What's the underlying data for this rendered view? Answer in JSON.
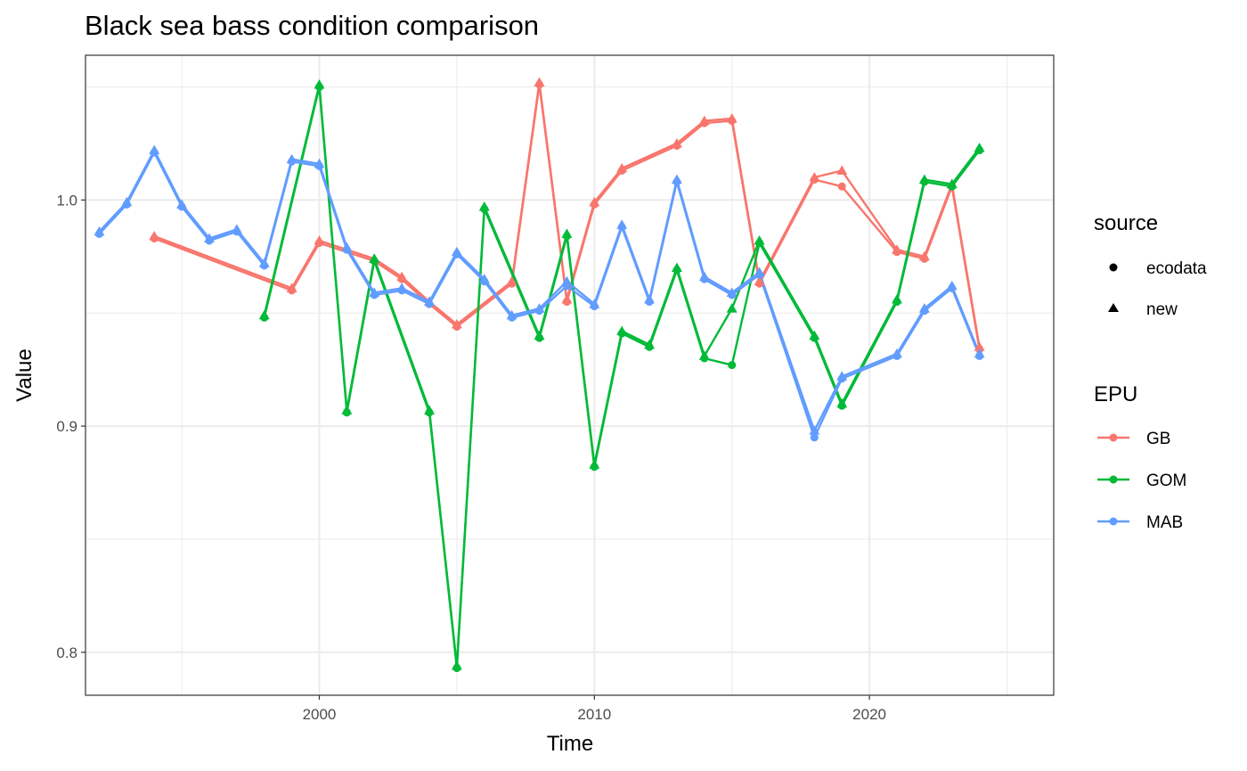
{
  "chart_data": {
    "type": "line",
    "title": "Black sea bass condition comparison",
    "xlabel": "Time",
    "ylabel": "Value",
    "xlim": [
      1991.5,
      2026.7
    ],
    "ylim": [
      0.781,
      1.064
    ],
    "x_ticks": [
      2000,
      2010,
      2020
    ],
    "x_tick_labels": [
      "2000",
      "2010",
      "2020"
    ],
    "y_ticks": [
      0.8,
      0.9,
      1.0
    ],
    "y_tick_labels": [
      "0.8",
      "0.9",
      "1.0"
    ],
    "grid": true,
    "legend_placement": "right",
    "legend": {
      "source_title": "source",
      "source_items": [
        {
          "label": "ecodata",
          "shape": "circle"
        },
        {
          "label": "new",
          "shape": "triangle"
        }
      ],
      "epu_title": "EPU",
      "epu_items": [
        {
          "label": "GB",
          "color": "#F8766D"
        },
        {
          "label": "GOM",
          "color": "#00BA38"
        },
        {
          "label": "MAB",
          "color": "#619CFF"
        }
      ]
    },
    "series": [
      {
        "name": "GB",
        "source": "ecodata",
        "color": "#F8766D",
        "x": [
          1994,
          1999,
          2000,
          2002,
          2003,
          2004,
          2005,
          2007,
          2008,
          2009,
          2010,
          2011,
          2013,
          2014,
          2015,
          2016,
          2018,
          2019,
          2021,
          2022,
          2023,
          2024
        ],
        "y": [
          0.983,
          0.96,
          0.981,
          0.973,
          0.965,
          0.954,
          0.944,
          0.963,
          1.051,
          0.955,
          0.998,
          1.013,
          1.024,
          1.034,
          1.035,
          0.963,
          1.009,
          1.006,
          0.977,
          0.974,
          1.006,
          0.934
        ]
      },
      {
        "name": "GB",
        "source": "new",
        "color": "#F8766D",
        "x": [
          1994,
          1999,
          2000,
          2002,
          2003,
          2004,
          2005,
          2007,
          2008,
          2009,
          2010,
          2011,
          2013,
          2014,
          2015,
          2016,
          2018,
          2019,
          2021,
          2022,
          2023,
          2024
        ],
        "y": [
          0.984,
          0.961,
          0.982,
          0.974,
          0.966,
          0.955,
          0.945,
          0.964,
          1.052,
          0.956,
          0.999,
          1.014,
          1.025,
          1.035,
          1.036,
          0.964,
          1.01,
          1.013,
          0.978,
          0.975,
          1.007,
          0.935
        ]
      },
      {
        "name": "GOM",
        "source": "ecodata",
        "color": "#00BA38",
        "x": [
          1998,
          2000,
          2001,
          2002,
          2004,
          2005,
          2006,
          2008,
          2009,
          2010,
          2011,
          2012,
          2013,
          2014,
          2015,
          2016,
          2018,
          2019,
          2021,
          2022,
          2023,
          2024
        ],
        "y": [
          0.948,
          1.05,
          0.906,
          0.973,
          0.906,
          0.793,
          0.996,
          0.939,
          0.984,
          0.882,
          0.941,
          0.935,
          0.969,
          0.93,
          0.927,
          0.981,
          0.939,
          0.909,
          0.955,
          1.008,
          1.006,
          1.022
        ]
      },
      {
        "name": "GOM",
        "source": "new",
        "color": "#00BA38",
        "x": [
          1998,
          2000,
          2001,
          2002,
          2004,
          2005,
          2006,
          2008,
          2009,
          2010,
          2011,
          2012,
          2013,
          2014,
          2015,
          2016,
          2018,
          2019,
          2021,
          2022,
          2023,
          2024
        ],
        "y": [
          0.949,
          1.051,
          0.907,
          0.974,
          0.907,
          0.794,
          0.997,
          0.94,
          0.985,
          0.883,
          0.942,
          0.936,
          0.97,
          0.931,
          0.952,
          0.982,
          0.94,
          0.91,
          0.956,
          1.009,
          1.007,
          1.023
        ]
      },
      {
        "name": "MAB",
        "source": "ecodata",
        "color": "#619CFF",
        "x": [
          1992,
          1993,
          1994,
          1995,
          1996,
          1997,
          1998,
          1999,
          2000,
          2001,
          2002,
          2003,
          2004,
          2005,
          2006,
          2007,
          2008,
          2009,
          2010,
          2011,
          2012,
          2013,
          2014,
          2015,
          2016,
          2018,
          2019,
          2021,
          2022,
          2023,
          2024
        ],
        "y": [
          0.985,
          0.998,
          1.021,
          0.997,
          0.982,
          0.986,
          0.971,
          1.017,
          1.015,
          0.978,
          0.958,
          0.96,
          0.954,
          0.976,
          0.964,
          0.948,
          0.951,
          0.962,
          0.953,
          0.988,
          0.955,
          1.008,
          0.965,
          0.958,
          0.967,
          0.895,
          0.921,
          0.931,
          0.951,
          0.961,
          0.931
        ]
      },
      {
        "name": "MAB",
        "source": "new",
        "color": "#619CFF",
        "x": [
          1992,
          1993,
          1994,
          1995,
          1996,
          1997,
          1998,
          1999,
          2000,
          2001,
          2002,
          2003,
          2004,
          2005,
          2006,
          2007,
          2008,
          2009,
          2010,
          2011,
          2012,
          2013,
          2014,
          2015,
          2016,
          2018,
          2019,
          2021,
          2022,
          2023,
          2024
        ],
        "y": [
          0.986,
          0.999,
          1.022,
          0.998,
          0.983,
          0.987,
          0.972,
          1.018,
          1.016,
          0.979,
          0.959,
          0.961,
          0.955,
          0.977,
          0.965,
          0.949,
          0.952,
          0.964,
          0.954,
          0.989,
          0.956,
          1.009,
          0.966,
          0.959,
          0.968,
          0.898,
          0.922,
          0.932,
          0.952,
          0.962,
          0.932
        ]
      }
    ]
  }
}
